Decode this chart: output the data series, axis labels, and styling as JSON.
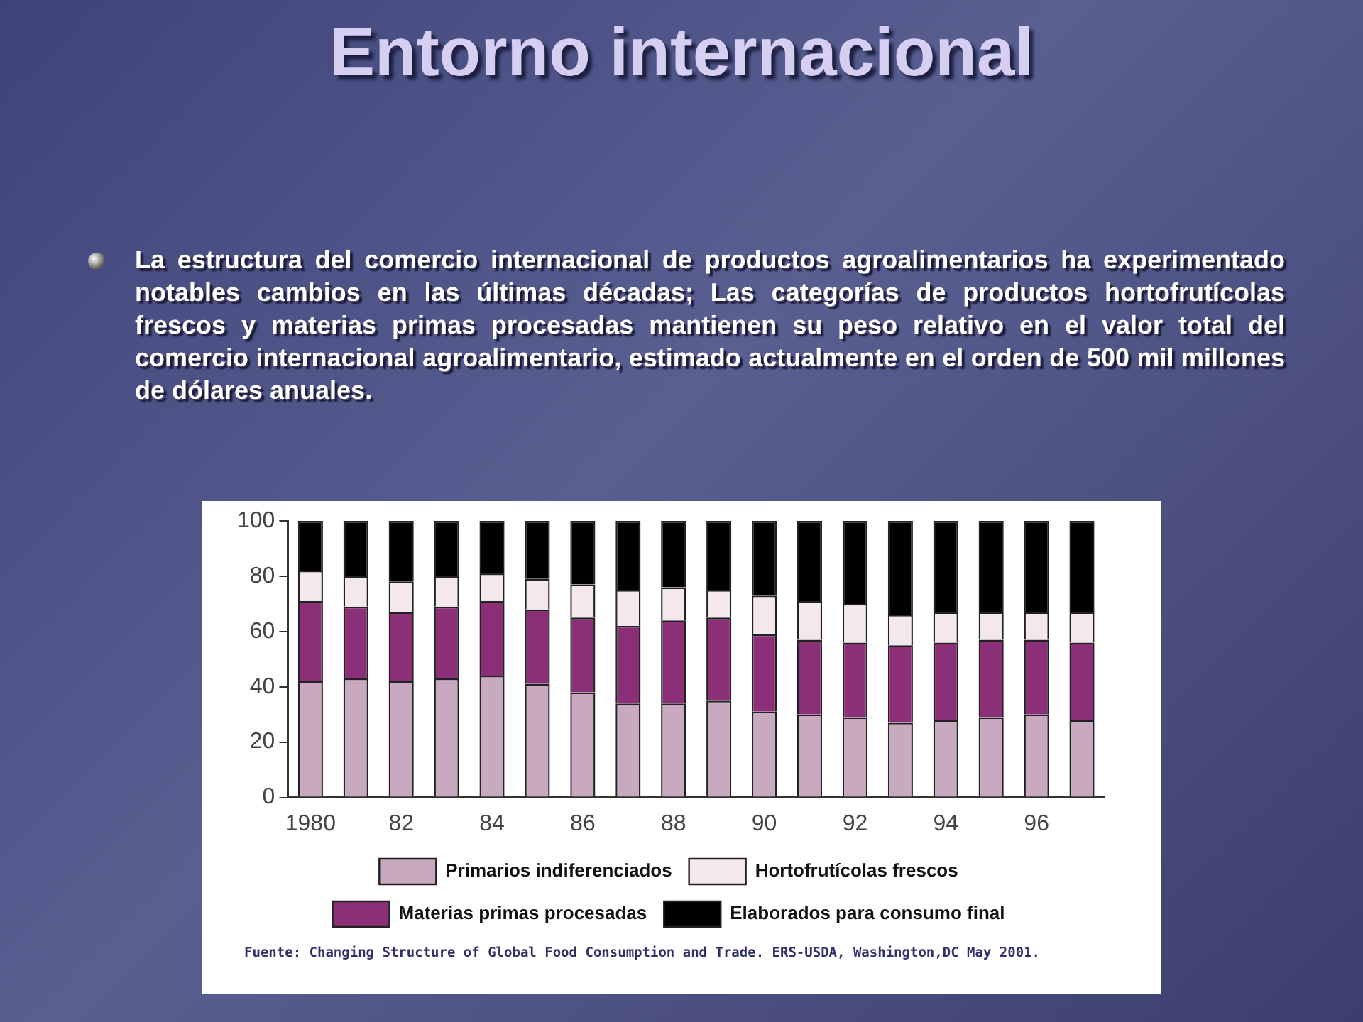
{
  "chart_data": {
    "type": "bar",
    "title": "Entorno internacional",
    "subtitle": "La estructura del comercio internacional de productos agroalimentarios ha experimentado notables cambios en las últimas décadas; Las categorías de productos hortofrutícolas frescos y materias primas procesadas mantienen su peso relativo en el valor total del comercio internacional agroalimentario, estimado actualmente en el orden de 500 mil millones de dólares anuales.",
    "categories": [
      "1980",
      null,
      "82",
      null,
      "84",
      null,
      "86",
      null,
      "88",
      null,
      "90",
      null,
      "92",
      null,
      "94",
      null,
      "96",
      null
    ],
    "stacked": true,
    "series": [
      {
        "name": "Primarios indiferenciados",
        "color": "#c9a9bf",
        "values": [
          42,
          43,
          42,
          43,
          44,
          41,
          38,
          34,
          34,
          35,
          31,
          30,
          29,
          27,
          28,
          29,
          30,
          28
        ]
      },
      {
        "name": "Materias primas procesadas",
        "color": "#8b2f78",
        "values": [
          29,
          26,
          25,
          26,
          27,
          27,
          27,
          28,
          30,
          30,
          28,
          27,
          27,
          28,
          28,
          28,
          27,
          28
        ]
      },
      {
        "name": "Hortofrutícolas frescos",
        "color": "#f3e8ee",
        "values": [
          11,
          11,
          11,
          11,
          10,
          11,
          12,
          13,
          12,
          10,
          14,
          14,
          14,
          11,
          11,
          10,
          10,
          11
        ]
      },
      {
        "name": "Elaborados para consumo final",
        "color": "#000000",
        "values": [
          18,
          20,
          22,
          20,
          19,
          21,
          23,
          25,
          24,
          25,
          27,
          29,
          30,
          34,
          33,
          33,
          33,
          33
        ]
      }
    ],
    "ylim": [
      0,
      100
    ],
    "yticks": [
      0,
      20,
      40,
      60,
      80,
      100
    ],
    "grid": false,
    "legend": "bottom",
    "annotations": [
      "Fuente: Changing Structure of Global Food Consumption and Trade. ERS-USDA, Washington,DC  May 2001."
    ]
  }
}
